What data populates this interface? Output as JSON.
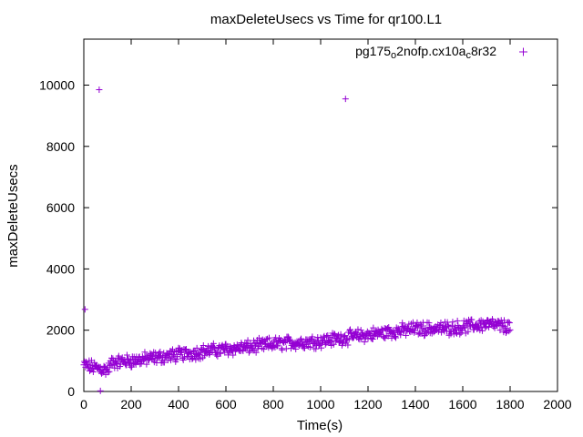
{
  "chart_data": {
    "type": "scatter",
    "title": "maxDeleteUsecs vs Time for qr100.L1",
    "xlabel": "Time(s)",
    "ylabel": "maxDeleteUsecs",
    "xlim": [
      0,
      2000
    ],
    "ylim": [
      0,
      11500
    ],
    "xticks": [
      0,
      200,
      400,
      600,
      800,
      1000,
      1200,
      1400,
      1600,
      1800,
      2000
    ],
    "yticks": [
      0,
      2000,
      4000,
      6000,
      8000,
      10000
    ],
    "grid": false,
    "legend_position": "top-right",
    "marker": "+",
    "series": [
      {
        "name_parts": [
          "pg175",
          "o",
          "2nofp.cx10a",
          "c",
          "8r32"
        ],
        "color": "#9400d3",
        "outliers": [
          {
            "x": 5,
            "y": 2680
          },
          {
            "x": 65,
            "y": 9850
          },
          {
            "x": 1105,
            "y": 9550
          },
          {
            "x": 70,
            "y": 20
          }
        ],
        "trend": {
          "x": [
            0,
            100,
            120,
            200,
            300,
            400,
            500,
            600,
            700,
            800,
            900,
            1000,
            1100,
            1200,
            1300,
            1400,
            1500,
            1600,
            1700,
            1800
          ],
          "y": [
            850,
            700,
            950,
            1000,
            1100,
            1200,
            1300,
            1380,
            1450,
            1550,
            1600,
            1650,
            1750,
            1850,
            1950,
            2050,
            2050,
            2100,
            2200,
            2100
          ]
        },
        "x_range": [
          0,
          1800
        ],
        "spread": 350
      }
    ]
  }
}
